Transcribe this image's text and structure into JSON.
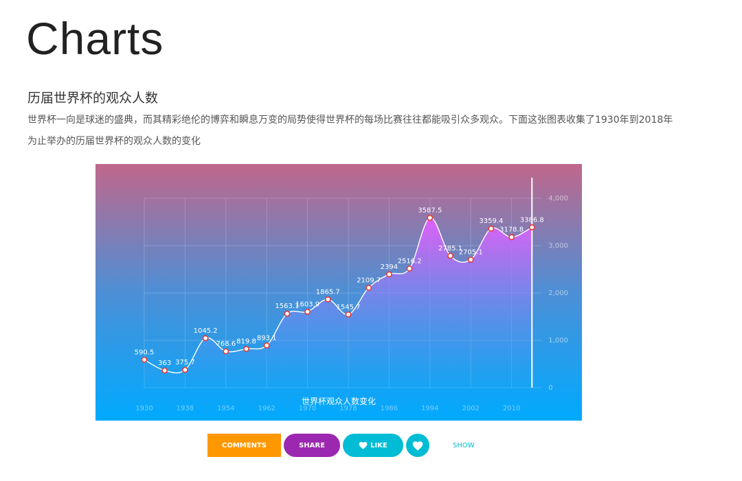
{
  "header": {
    "title": "Charts"
  },
  "article": {
    "title": "历届世界杯的观众人数",
    "description": "世界杯一向是球迷的盛典，而其精彩绝伦的博弈和瞬息万变的局势使得世界杯的每场比赛往往都能吸引众多观众。下面这张图表收集了1930年到2018年为止举办的历届世界杯的观众人数的变化"
  },
  "actions": {
    "comments_label": "COMMENTS",
    "share_label": "SHARE",
    "like_label": "LIKE",
    "show_label": "SHOW",
    "like_icon": "heart-icon",
    "favorite_icon": "heart-icon"
  },
  "colors": {
    "gradient_top": "#c0678b",
    "gradient_mid": "#4d8fd6",
    "gradient_bottom": "#00aaff",
    "area_top": "#de60fa",
    "area_bottom": "#3aa3f5",
    "comments": "#ff9800",
    "share": "#9c27b0",
    "like": "#00bcd4"
  },
  "chart_data": {
    "type": "area",
    "title": "世界杯观众人数变化",
    "xlabel": "",
    "ylabel": "",
    "x": [
      1930,
      1934,
      1938,
      1950,
      1954,
      1958,
      1962,
      1966,
      1970,
      1974,
      1978,
      1982,
      1986,
      1990,
      1994,
      1998,
      2002,
      2006,
      2010,
      2014
    ],
    "values": [
      590.5,
      363,
      375.7,
      1045.2,
      768.6,
      819.8,
      893.1,
      1563.1,
      1603.9,
      1865.7,
      1545.7,
      2109.7,
      2394,
      2516.2,
      3587.5,
      2785.1,
      2705.1,
      3359.4,
      3178.8,
      3386.8
    ],
    "data_labels": [
      "590.5",
      "363",
      "375.7",
      "1045.2",
      "768.6",
      "819.8",
      "893.1",
      "1563.1",
      "1603.9",
      "1865.7",
      "1545.7",
      "2109.7",
      "2394",
      "2516.2",
      "3587.5",
      "2785.1",
      "2705.1",
      "3359.4",
      "3178.8",
      "3386.8"
    ],
    "x_tick_labels": [
      "1930",
      "1938",
      "1954",
      "1962",
      "1970",
      "1978",
      "1986",
      "1994",
      "2002",
      "2010"
    ],
    "x_tick_positions": [
      0,
      2,
      4,
      6,
      8,
      10,
      12,
      14,
      16,
      18
    ],
    "y_ticks": [
      0,
      1000,
      2000,
      3000,
      4000
    ],
    "y_tick_labels": [
      "0",
      "1,000",
      "2,000",
      "3,000",
      "4,000"
    ],
    "ylim": [
      0,
      4000
    ],
    "y_axis_position": "right",
    "grid": true,
    "smooth": true
  }
}
